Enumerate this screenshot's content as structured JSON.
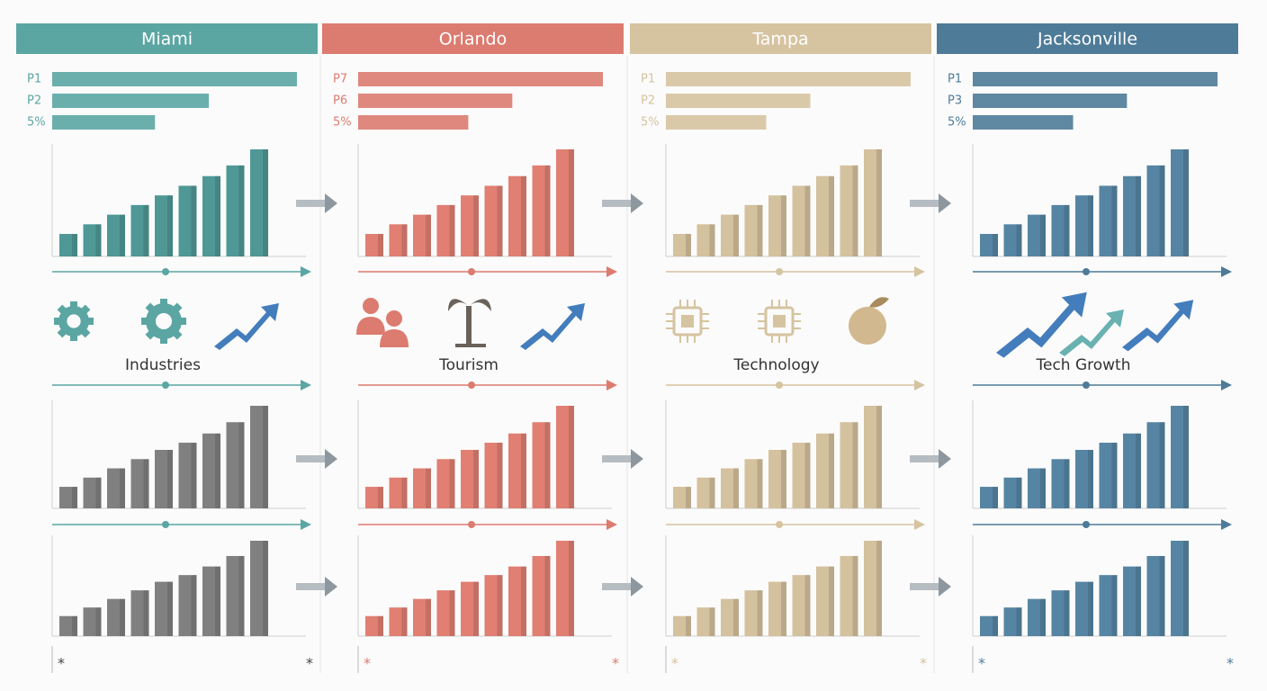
{
  "xlim": [
    0,
    100
  ],
  "ylim": [
    0,
    100
  ],
  "columns": [
    {
      "title": "Miami",
      "color": "#5ba6a3",
      "top_bars": {
        "labels": [
          "P1",
          "P2",
          "5%"
        ],
        "values": [
          100,
          64,
          42
        ]
      },
      "label": "Industries",
      "charts": [
        {
          "color": "#4f9896",
          "values": [
            21,
            30,
            39,
            48,
            57,
            66,
            75,
            85,
            100
          ]
        },
        {
          "color": "#808080",
          "values": [
            21,
            30,
            39,
            48,
            57,
            64,
            73,
            84,
            100
          ]
        },
        {
          "color": "#808080",
          "values": [
            21,
            30,
            39,
            48,
            57,
            64,
            73,
            84,
            100
          ]
        }
      ],
      "stars": [
        "*",
        "*"
      ]
    },
    {
      "title": "Orlando",
      "color": "#dc7b6f",
      "top_bars": {
        "labels": [
          "P7",
          "P6",
          "5%"
        ],
        "values": [
          100,
          63,
          45
        ]
      },
      "label": "Tourism",
      "charts": [
        {
          "color": "#e07f72",
          "values": [
            21,
            30,
            39,
            48,
            57,
            66,
            75,
            85,
            100
          ]
        },
        {
          "color": "#e07f72",
          "values": [
            21,
            30,
            39,
            48,
            57,
            64,
            73,
            84,
            100
          ]
        },
        {
          "color": "#e07f72",
          "values": [
            21,
            30,
            39,
            48,
            57,
            64,
            73,
            84,
            100
          ]
        }
      ],
      "stars": [
        "*",
        "*"
      ]
    },
    {
      "title": "Tampa",
      "color": "#d6c3a0",
      "top_bars": {
        "labels": [
          "P1",
          "P2",
          "5%"
        ],
        "values": [
          100,
          59,
          41
        ]
      },
      "label": "Technology",
      "charts": [
        {
          "color": "#d4c19d",
          "values": [
            21,
            30,
            39,
            48,
            57,
            66,
            75,
            85,
            100
          ]
        },
        {
          "color": "#d4c19d",
          "values": [
            21,
            30,
            39,
            48,
            57,
            64,
            73,
            84,
            100
          ]
        },
        {
          "color": "#d4c19d",
          "values": [
            21,
            30,
            39,
            48,
            57,
            64,
            73,
            84,
            100
          ]
        }
      ],
      "stars": [
        "*",
        "*"
      ]
    },
    {
      "title": "Jacksonville",
      "color": "#4e7b98",
      "top_bars": {
        "labels": [
          "P1",
          "P3",
          "5%"
        ],
        "values": [
          100,
          63,
          41
        ]
      },
      "label": "Tech Growth",
      "charts": [
        {
          "color": "#5685a3",
          "values": [
            21,
            30,
            39,
            48,
            57,
            66,
            75,
            85,
            100
          ]
        },
        {
          "color": "#5685a3",
          "values": [
            21,
            30,
            39,
            48,
            57,
            64,
            73,
            84,
            100
          ]
        },
        {
          "color": "#5685a3",
          "values": [
            21,
            30,
            39,
            48,
            57,
            64,
            73,
            84,
            100
          ]
        }
      ],
      "stars": [
        "*",
        "*"
      ]
    }
  ]
}
